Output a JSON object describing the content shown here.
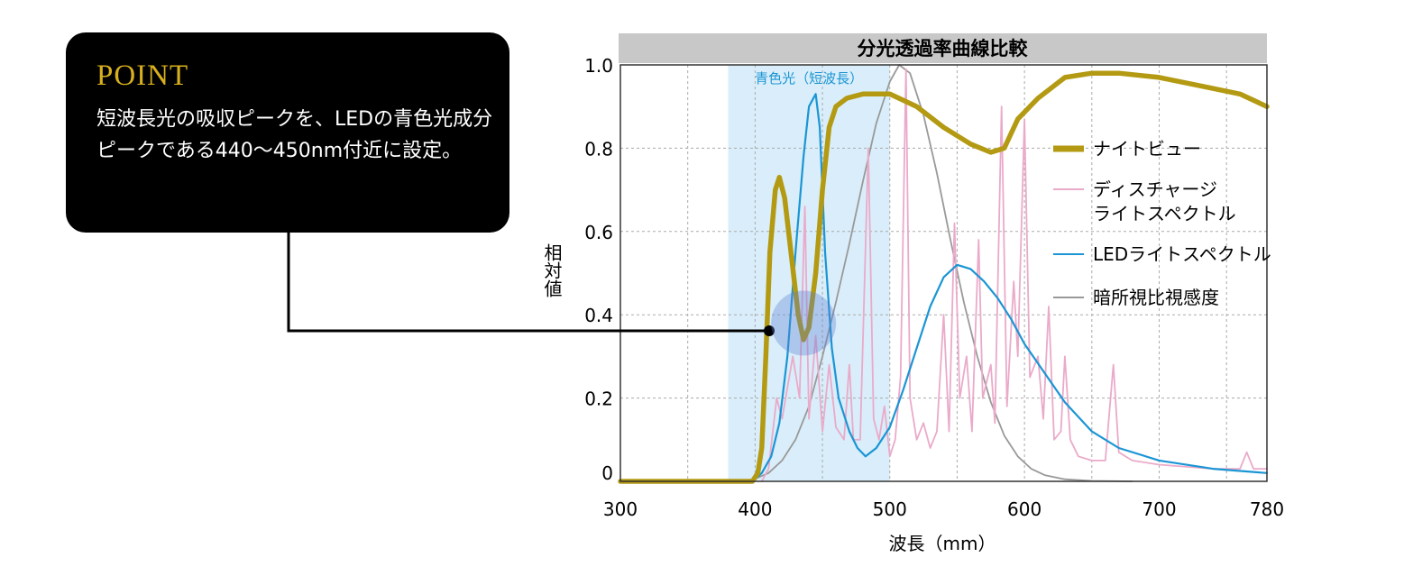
{
  "callout": {
    "title": "POINT",
    "body": "短波長光の吸収ピークを、LEDの青色光成分ピークである440〜450nm付近に設定。"
  },
  "chart_data": {
    "type": "line",
    "title": "分光透過率曲線比較",
    "xlabel": "波長（mm）",
    "ylabel": "相対値",
    "xlim": [
      300,
      780
    ],
    "ylim": [
      0,
      1.0
    ],
    "x_ticks": [
      300,
      400,
      500,
      600,
      700,
      780
    ],
    "y_ticks": [
      0,
      0.2,
      0.4,
      0.6,
      0.8,
      1.0
    ],
    "y_tick_labels": [
      "0",
      "0.2",
      "0.4",
      "0.6",
      "0.8",
      "1.0"
    ],
    "grid": true,
    "legend_position": "right",
    "band": {
      "label": "青色光（短波長）",
      "range": [
        380,
        500
      ],
      "color": "#d9eefa"
    },
    "highlight_point": {
      "x": 436,
      "y": 0.38
    },
    "series": [
      {
        "name": "ナイトビュー",
        "color": "#b39a12",
        "points": [
          [
            300,
            0
          ],
          [
            380,
            0
          ],
          [
            398,
            0
          ],
          [
            402,
            0.02
          ],
          [
            405,
            0.08
          ],
          [
            408,
            0.3
          ],
          [
            411,
            0.55
          ],
          [
            415,
            0.7
          ],
          [
            418,
            0.73
          ],
          [
            422,
            0.68
          ],
          [
            427,
            0.54
          ],
          [
            432,
            0.4
          ],
          [
            436,
            0.34
          ],
          [
            440,
            0.37
          ],
          [
            445,
            0.5
          ],
          [
            450,
            0.7
          ],
          [
            455,
            0.85
          ],
          [
            460,
            0.9
          ],
          [
            468,
            0.92
          ],
          [
            480,
            0.93
          ],
          [
            500,
            0.93
          ],
          [
            520,
            0.9
          ],
          [
            540,
            0.85
          ],
          [
            560,
            0.81
          ],
          [
            575,
            0.79
          ],
          [
            585,
            0.8
          ],
          [
            595,
            0.87
          ],
          [
            610,
            0.92
          ],
          [
            630,
            0.97
          ],
          [
            650,
            0.98
          ],
          [
            670,
            0.98
          ],
          [
            700,
            0.97
          ],
          [
            730,
            0.95
          ],
          [
            760,
            0.93
          ],
          [
            780,
            0.9
          ]
        ]
      },
      {
        "name": "ディスチャージライトスペクトル",
        "color": "#eaaac9",
        "points": [
          [
            405,
            0
          ],
          [
            410,
            0.03
          ],
          [
            416,
            0.2
          ],
          [
            420,
            0.15
          ],
          [
            428,
            0.3
          ],
          [
            433,
            0.2
          ],
          [
            437,
            0.66
          ],
          [
            440,
            0.15
          ],
          [
            445,
            0.35
          ],
          [
            450,
            0.12
          ],
          [
            455,
            0.28
          ],
          [
            460,
            0.13
          ],
          [
            466,
            0.1
          ],
          [
            470,
            0.28
          ],
          [
            473,
            0.1
          ],
          [
            478,
            0.1
          ],
          [
            484,
            0.8
          ],
          [
            488,
            0.15
          ],
          [
            492,
            0.1
          ],
          [
            496,
            0.18
          ],
          [
            500,
            0.06
          ],
          [
            504,
            0.1
          ],
          [
            508,
            0.25
          ],
          [
            512,
            0.99
          ],
          [
            515,
            0.2
          ],
          [
            520,
            0.1
          ],
          [
            525,
            0.14
          ],
          [
            530,
            0.08
          ],
          [
            535,
            0.12
          ],
          [
            540,
            0.4
          ],
          [
            544,
            0.12
          ],
          [
            548,
            0.62
          ],
          [
            552,
            0.2
          ],
          [
            557,
            0.3
          ],
          [
            561,
            0.12
          ],
          [
            566,
            0.58
          ],
          [
            569,
            0.2
          ],
          [
            575,
            0.28
          ],
          [
            578,
            0.14
          ],
          [
            583,
            0.9
          ],
          [
            587,
            0.18
          ],
          [
            592,
            0.48
          ],
          [
            595,
            0.3
          ],
          [
            600,
            0.87
          ],
          [
            604,
            0.25
          ],
          [
            610,
            0.3
          ],
          [
            614,
            0.15
          ],
          [
            618,
            0.42
          ],
          [
            622,
            0.1
          ],
          [
            627,
            0.12
          ],
          [
            630,
            0.3
          ],
          [
            634,
            0.1
          ],
          [
            640,
            0.06
          ],
          [
            650,
            0.05
          ],
          [
            660,
            0.05
          ],
          [
            666,
            0.28
          ],
          [
            670,
            0.07
          ],
          [
            680,
            0.05
          ],
          [
            700,
            0.04
          ],
          [
            740,
            0.03
          ],
          [
            760,
            0.03
          ],
          [
            765,
            0.07
          ],
          [
            770,
            0.03
          ],
          [
            780,
            0.03
          ]
        ]
      },
      {
        "name": "LEDライトスペクトル",
        "color": "#1b95d4",
        "points": [
          [
            300,
            0
          ],
          [
            390,
            0
          ],
          [
            398,
            0
          ],
          [
            405,
            0.02
          ],
          [
            412,
            0.06
          ],
          [
            418,
            0.14
          ],
          [
            424,
            0.3
          ],
          [
            430,
            0.55
          ],
          [
            436,
            0.78
          ],
          [
            440,
            0.9
          ],
          [
            445,
            0.93
          ],
          [
            448,
            0.85
          ],
          [
            452,
            0.55
          ],
          [
            457,
            0.32
          ],
          [
            462,
            0.2
          ],
          [
            470,
            0.12
          ],
          [
            476,
            0.08
          ],
          [
            482,
            0.06
          ],
          [
            490,
            0.08
          ],
          [
            500,
            0.13
          ],
          [
            510,
            0.22
          ],
          [
            520,
            0.32
          ],
          [
            530,
            0.42
          ],
          [
            540,
            0.49
          ],
          [
            550,
            0.52
          ],
          [
            560,
            0.51
          ],
          [
            570,
            0.48
          ],
          [
            580,
            0.44
          ],
          [
            590,
            0.39
          ],
          [
            600,
            0.33
          ],
          [
            615,
            0.26
          ],
          [
            630,
            0.19
          ],
          [
            650,
            0.12
          ],
          [
            670,
            0.08
          ],
          [
            700,
            0.05
          ],
          [
            740,
            0.03
          ],
          [
            780,
            0.02
          ]
        ]
      },
      {
        "name": "暗所視比視感度",
        "color": "#999999",
        "points": [
          [
            380,
            0
          ],
          [
            395,
            0.003
          ],
          [
            400,
            0.006
          ],
          [
            410,
            0.02
          ],
          [
            420,
            0.05
          ],
          [
            430,
            0.1
          ],
          [
            440,
            0.18
          ],
          [
            450,
            0.3
          ],
          [
            460,
            0.43
          ],
          [
            470,
            0.57
          ],
          [
            480,
            0.72
          ],
          [
            490,
            0.86
          ],
          [
            500,
            0.96
          ],
          [
            507,
            1.0
          ],
          [
            515,
            0.98
          ],
          [
            525,
            0.88
          ],
          [
            535,
            0.74
          ],
          [
            545,
            0.58
          ],
          [
            555,
            0.43
          ],
          [
            565,
            0.3
          ],
          [
            575,
            0.19
          ],
          [
            585,
            0.11
          ],
          [
            595,
            0.06
          ],
          [
            605,
            0.03
          ],
          [
            615,
            0.015
          ],
          [
            630,
            0.005
          ],
          [
            650,
            0.001
          ],
          [
            680,
            0
          ]
        ]
      }
    ]
  }
}
